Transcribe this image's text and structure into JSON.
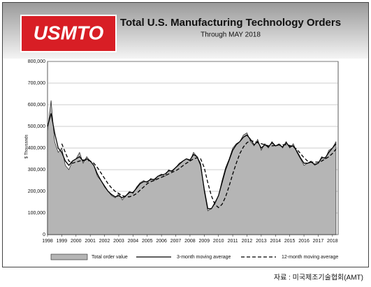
{
  "chart_data": {
    "type": "line",
    "logo": "USMTO",
    "title": "Total U.S. Manufacturing Technology Orders",
    "subtitle": "Through MAY 2018",
    "y_label": "$ Thousands",
    "source": "자료 : 미국제조기술협회(AMT)",
    "grid": true,
    "xlim": [
      1998,
      2018.4
    ],
    "ylim": [
      0,
      800000
    ],
    "xticks": [
      1998,
      1999,
      2000,
      2001,
      2002,
      2003,
      2004,
      2005,
      2006,
      2007,
      2008,
      2009,
      2010,
      2011,
      2012,
      2013,
      2014,
      2015,
      2016,
      2017,
      2018
    ],
    "yticks": [
      0,
      {
        "value": 100000,
        "label": "100,000"
      },
      {
        "value": 200000,
        "label": "200,000"
      },
      {
        "value": 300000,
        "label": "300,000"
      },
      {
        "value": 400000,
        "label": "400,000"
      },
      {
        "value": 500000,
        "label": "500,000"
      },
      {
        "value": 600000,
        "label": "600,000"
      },
      {
        "value": 700000,
        "label": "700,000"
      },
      {
        "value": 800000,
        "label": "800,000"
      }
    ],
    "x": [
      1998,
      1998.25,
      1998.5,
      1998.75,
      1999,
      1999.25,
      1999.5,
      1999.75,
      2000,
      2000.25,
      2000.5,
      2000.75,
      2001,
      2001.25,
      2001.5,
      2001.75,
      2002,
      2002.25,
      2002.5,
      2002.75,
      2003,
      2003.25,
      2003.5,
      2003.75,
      2004,
      2004.25,
      2004.5,
      2004.75,
      2005,
      2005.25,
      2005.5,
      2005.75,
      2006,
      2006.25,
      2006.5,
      2006.75,
      2007,
      2007.25,
      2007.5,
      2007.75,
      2008,
      2008.25,
      2008.5,
      2008.75,
      2009,
      2009.25,
      2009.5,
      2009.75,
      2010,
      2010.25,
      2010.5,
      2010.75,
      2011,
      2011.25,
      2011.5,
      2011.75,
      2012,
      2012.25,
      2012.5,
      2012.75,
      2013,
      2013.25,
      2013.5,
      2013.75,
      2014,
      2014.25,
      2014.5,
      2014.75,
      2015,
      2015.25,
      2015.5,
      2015.75,
      2016,
      2016.25,
      2016.5,
      2016.75,
      2017,
      2017.25,
      2017.5,
      2017.75,
      2018,
      2018.25
    ],
    "series": [
      {
        "name": "Total order value",
        "color": "#b5b5b5",
        "style": "area",
        "values": [
          480000,
          620000,
          430000,
          380000,
          400000,
          320000,
          300000,
          340000,
          350000,
          380000,
          330000,
          360000,
          340000,
          320000,
          270000,
          250000,
          220000,
          200000,
          180000,
          170000,
          190000,
          160000,
          180000,
          200000,
          190000,
          220000,
          240000,
          250000,
          240000,
          260000,
          250000,
          270000,
          280000,
          270000,
          300000,
          290000,
          310000,
          330000,
          340000,
          350000,
          340000,
          380000,
          360000,
          330000,
          200000,
          110000,
          120000,
          150000,
          180000,
          250000,
          310000,
          350000,
          400000,
          420000,
          430000,
          460000,
          470000,
          430000,
          410000,
          440000,
          390000,
          420000,
          400000,
          430000,
          410000,
          420000,
          400000,
          430000,
          400000,
          420000,
          380000,
          350000,
          320000,
          330000,
          340000,
          320000,
          330000,
          360000,
          350000,
          390000,
          400000,
          430000
        ]
      },
      {
        "name": "3-month moving average",
        "color": "#000000",
        "style": "solid",
        "values": [
          500000,
          560000,
          470000,
          400000,
          380000,
          340000,
          320000,
          340000,
          350000,
          360000,
          340000,
          350000,
          340000,
          320000,
          280000,
          250000,
          225000,
          200000,
          185000,
          175000,
          180000,
          170000,
          180000,
          195000,
          195000,
          215000,
          235000,
          245000,
          245000,
          255000,
          255000,
          270000,
          275000,
          280000,
          295000,
          295000,
          310000,
          325000,
          340000,
          350000,
          345000,
          370000,
          360000,
          320000,
          210000,
          120000,
          120000,
          145000,
          180000,
          240000,
          300000,
          345000,
          390000,
          415000,
          430000,
          450000,
          460000,
          440000,
          415000,
          430000,
          400000,
          415000,
          405000,
          425000,
          410000,
          415000,
          405000,
          425000,
          405000,
          410000,
          385000,
          355000,
          330000,
          330000,
          335000,
          325000,
          330000,
          355000,
          355000,
          380000,
          400000,
          420000
        ]
      },
      {
        "name": "12-month moving average",
        "color": "#000000",
        "style": "dashed",
        "values": [
          null,
          null,
          null,
          null,
          420000,
          380000,
          340000,
          330000,
          335000,
          340000,
          345000,
          345000,
          340000,
          330000,
          310000,
          285000,
          260000,
          235000,
          215000,
          200000,
          190000,
          180000,
          175000,
          175000,
          180000,
          190000,
          205000,
          220000,
          235000,
          245000,
          250000,
          258000,
          265000,
          272000,
          280000,
          288000,
          295000,
          305000,
          318000,
          330000,
          340000,
          350000,
          355000,
          350000,
          310000,
          240000,
          180000,
          140000,
          125000,
          140000,
          175000,
          225000,
          280000,
          330000,
          375000,
          405000,
          425000,
          435000,
          430000,
          425000,
          420000,
          415000,
          410000,
          410000,
          412000,
          415000,
          415000,
          415000,
          412000,
          405000,
          395000,
          375000,
          355000,
          340000,
          335000,
          335000,
          335000,
          340000,
          350000,
          360000,
          375000,
          395000
        ]
      }
    ]
  }
}
